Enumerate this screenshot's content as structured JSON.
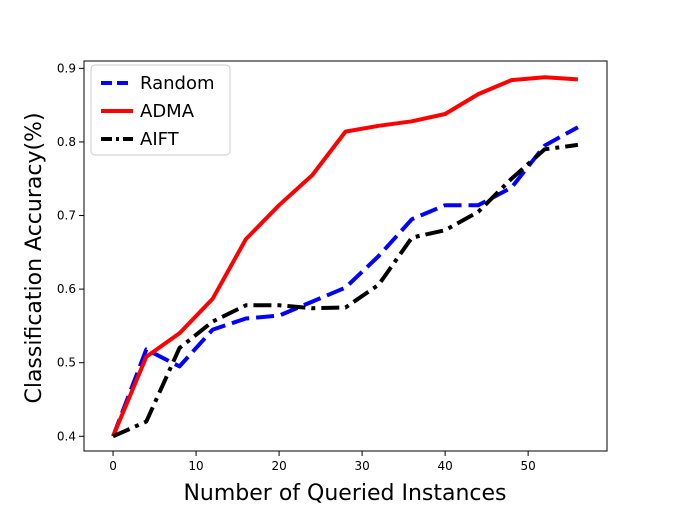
{
  "chart_data": {
    "type": "line",
    "xlabel": "Number of Queried Instances",
    "ylabel": "Classification Accuracy(%)",
    "xlim": [
      -3.5,
      59.5
    ],
    "ylim": [
      0.38,
      0.91
    ],
    "xticks": [
      0,
      10,
      20,
      30,
      40,
      50
    ],
    "yticks": [
      0.4,
      0.5,
      0.6,
      0.7,
      0.8,
      0.9
    ],
    "xtick_labels": [
      "0",
      "10",
      "20",
      "30",
      "40",
      "50"
    ],
    "ytick_labels": [
      "0.4",
      "0.5",
      "0.6",
      "0.7",
      "0.8",
      "0.9"
    ],
    "grid": false,
    "legend_position": "top-left",
    "series": [
      {
        "name": "Random",
        "color": "#0000ff",
        "style": "dashed",
        "x": [
          0,
          4,
          8,
          12,
          16,
          20,
          24,
          28,
          32,
          36,
          40,
          44,
          48,
          52,
          56
        ],
        "y": [
          0.4,
          0.518,
          0.495,
          0.545,
          0.56,
          0.564,
          0.583,
          0.602,
          0.645,
          0.695,
          0.714,
          0.714,
          0.738,
          0.795,
          0.82
        ]
      },
      {
        "name": "ADMA",
        "color": "#ff0000",
        "style": "solid",
        "x": [
          0,
          4,
          8,
          12,
          16,
          20,
          24,
          28,
          32,
          36,
          40,
          44,
          48,
          52,
          56
        ],
        "y": [
          0.4,
          0.508,
          0.54,
          0.587,
          0.668,
          0.714,
          0.755,
          0.814,
          0.822,
          0.828,
          0.838,
          0.865,
          0.884,
          0.888,
          0.885
        ]
      },
      {
        "name": "AIFT",
        "color": "#000000",
        "style": "dashdot",
        "x": [
          0,
          4,
          8,
          12,
          16,
          20,
          24,
          28,
          32,
          36,
          40,
          44,
          48,
          52,
          56
        ],
        "y": [
          0.4,
          0.42,
          0.52,
          0.556,
          0.578,
          0.578,
          0.574,
          0.575,
          0.606,
          0.67,
          0.68,
          0.705,
          0.75,
          0.79,
          0.796
        ]
      }
    ]
  }
}
